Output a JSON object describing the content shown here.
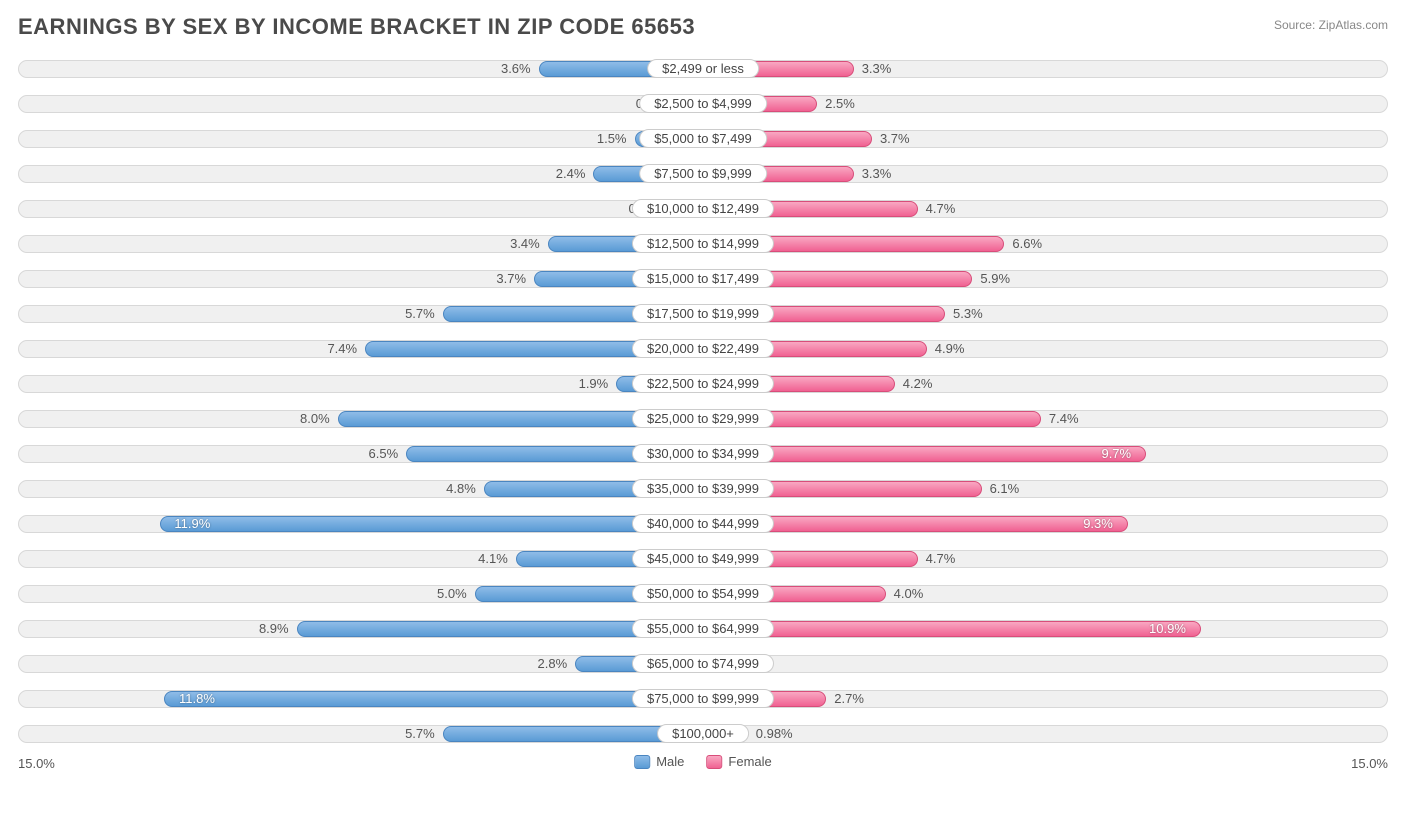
{
  "title": "EARNINGS BY SEX BY INCOME BRACKET IN ZIP CODE 65653",
  "source": "Source: ZipAtlas.com",
  "chart": {
    "type": "diverging-bar",
    "max_pct": 15.0,
    "axis_left_label": "15.0%",
    "axis_right_label": "15.0%",
    "legend": {
      "male": "Male",
      "female": "Female"
    },
    "colors": {
      "male_fill_top": "#8fbce8",
      "male_fill_bot": "#5a9bd5",
      "male_border": "#4a85c0",
      "female_fill_top": "#f9a8c2",
      "female_fill_bot": "#f06292",
      "female_border": "#d84d7a",
      "track_bg": "#f0f0f0",
      "track_border": "#d8d8d8",
      "text": "#555555",
      "title_text": "#4a4a4a",
      "source_text": "#888888",
      "background": "#ffffff"
    },
    "categories": [
      {
        "label": "$2,499 or less",
        "male": 3.6,
        "female": 3.3
      },
      {
        "label": "$2,500 to $4,999",
        "male": 0.49,
        "female": 2.5
      },
      {
        "label": "$5,000 to $7,499",
        "male": 1.5,
        "female": 3.7
      },
      {
        "label": "$7,500 to $9,999",
        "male": 2.4,
        "female": 3.3
      },
      {
        "label": "$10,000 to $12,499",
        "male": 0.65,
        "female": 4.7
      },
      {
        "label": "$12,500 to $14,999",
        "male": 3.4,
        "female": 6.6
      },
      {
        "label": "$15,000 to $17,499",
        "male": 3.7,
        "female": 5.9
      },
      {
        "label": "$17,500 to $19,999",
        "male": 5.7,
        "female": 5.3
      },
      {
        "label": "$20,000 to $22,499",
        "male": 7.4,
        "female": 4.9
      },
      {
        "label": "$22,500 to $24,999",
        "male": 1.9,
        "female": 4.2
      },
      {
        "label": "$25,000 to $29,999",
        "male": 8.0,
        "female": 7.4
      },
      {
        "label": "$30,000 to $34,999",
        "male": 6.5,
        "female": 9.7
      },
      {
        "label": "$35,000 to $39,999",
        "male": 4.8,
        "female": 6.1
      },
      {
        "label": "$40,000 to $44,999",
        "male": 11.9,
        "female": 9.3
      },
      {
        "label": "$45,000 to $49,999",
        "male": 4.1,
        "female": 4.7
      },
      {
        "label": "$50,000 to $54,999",
        "male": 5.0,
        "female": 4.0
      },
      {
        "label": "$55,000 to $64,999",
        "male": 8.9,
        "female": 10.9
      },
      {
        "label": "$65,000 to $74,999",
        "male": 2.8,
        "female": 0.0
      },
      {
        "label": "$75,000 to $99,999",
        "male": 11.8,
        "female": 2.7
      },
      {
        "label": "$100,000+",
        "male": 5.7,
        "female": 0.98
      }
    ]
  }
}
